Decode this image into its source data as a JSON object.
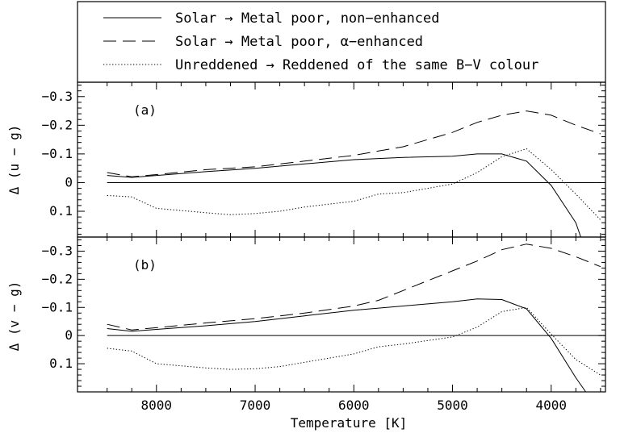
{
  "chart_data": {
    "type": "line",
    "xlabel": "Temperature [K]",
    "xlim": [
      8800,
      3450
    ],
    "x_reversed": true,
    "xticks": [
      8000,
      7000,
      6000,
      5000,
      4000
    ],
    "legend": {
      "placement": "top",
      "entries": [
        {
          "label": "Solar → Metal poor, non−enhanced",
          "style": "solid"
        },
        {
          "label": "Solar → Metal poor, α−enhanced",
          "style": "dashed"
        },
        {
          "label": "Unreddened → Reddened of the same B−V colour",
          "style": "dotted"
        }
      ]
    },
    "panels": [
      {
        "panel_label": "(a)",
        "ylabel": "Δ (u − g)",
        "ylim": [
          0.19,
          -0.35
        ],
        "y_reversed": true,
        "yticks": [
          -0.3,
          -0.2,
          -0.1,
          0,
          0.1
        ],
        "ytick_labels": [
          "−0.3",
          "−0.2",
          "−0.1",
          "0",
          "0.1"
        ],
        "zero_line": true,
        "series": [
          {
            "name": "Solar → Metal poor, non−enhanced",
            "style": "solid",
            "x": [
              8500,
              8250,
              8000,
              7500,
              7000,
              6500,
              6000,
              5500,
              5000,
              4750,
              4500,
              4250,
              4000,
              3750,
              3700
            ],
            "y": [
              -0.025,
              -0.018,
              -0.025,
              -0.038,
              -0.05,
              -0.065,
              -0.08,
              -0.088,
              -0.092,
              -0.1,
              -0.1,
              -0.075,
              0.01,
              0.14,
              0.19
            ]
          },
          {
            "name": "Solar → Metal poor, α−enhanced",
            "style": "dashed",
            "x": [
              8500,
              8250,
              8000,
              7500,
              7000,
              6500,
              6000,
              5750,
              5500,
              5000,
              4750,
              4500,
              4250,
              4000,
              3750,
              3500
            ],
            "y": [
              -0.035,
              -0.02,
              -0.028,
              -0.045,
              -0.055,
              -0.075,
              -0.095,
              -0.11,
              -0.125,
              -0.175,
              -0.21,
              -0.235,
              -0.25,
              -0.235,
              -0.2,
              -0.17
            ]
          },
          {
            "name": "Unreddened → Reddened of the same B−V colour",
            "style": "dotted",
            "x": [
              8500,
              8250,
              8000,
              7500,
              7250,
              7000,
              6750,
              6500,
              6000,
              5750,
              5500,
              5000,
              4750,
              4500,
              4250,
              4000,
              3750,
              3500
            ],
            "y": [
              0.045,
              0.05,
              0.09,
              0.105,
              0.112,
              0.108,
              0.1,
              0.085,
              0.065,
              0.04,
              0.035,
              0.005,
              -0.035,
              -0.09,
              -0.118,
              -0.045,
              0.04,
              0.13
            ]
          }
        ]
      },
      {
        "panel_label": "(b)",
        "ylabel": "Δ (v − g)",
        "ylim": [
          0.2,
          -0.35
        ],
        "y_reversed": true,
        "yticks": [
          -0.3,
          -0.2,
          -0.1,
          0,
          0.1
        ],
        "ytick_labels": [
          "−0.3",
          "−0.2",
          "−0.1",
          "0",
          "0.1"
        ],
        "zero_line": true,
        "series": [
          {
            "name": "Solar → Metal poor, non−enhanced",
            "style": "solid",
            "x": [
              8500,
              8250,
              8000,
              7500,
              7000,
              6500,
              6000,
              5500,
              5000,
              4750,
              4500,
              4250,
              4000,
              3750,
              3650
            ],
            "y": [
              -0.025,
              -0.015,
              -0.022,
              -0.035,
              -0.05,
              -0.07,
              -0.09,
              -0.105,
              -0.12,
              -0.13,
              -0.128,
              -0.095,
              0.01,
              0.15,
              0.2
            ]
          },
          {
            "name": "Solar → Metal poor, α−enhanced",
            "style": "dashed",
            "x": [
              8500,
              8250,
              8000,
              7500,
              7000,
              6500,
              6000,
              5750,
              5500,
              5000,
              4750,
              4500,
              4250,
              4000,
              3750,
              3500
            ],
            "y": [
              -0.04,
              -0.02,
              -0.028,
              -0.045,
              -0.06,
              -0.08,
              -0.105,
              -0.125,
              -0.16,
              -0.23,
              -0.265,
              -0.305,
              -0.325,
              -0.31,
              -0.28,
              -0.245
            ]
          },
          {
            "name": "Unreddened → Reddened of the same B−V colour",
            "style": "dotted",
            "x": [
              8500,
              8250,
              8000,
              7500,
              7250,
              7000,
              6750,
              6500,
              6000,
              5750,
              5500,
              5000,
              4750,
              4500,
              4250,
              4000,
              3750,
              3500
            ],
            "y": [
              0.045,
              0.055,
              0.1,
              0.115,
              0.12,
              0.118,
              0.11,
              0.095,
              0.065,
              0.04,
              0.03,
              0.005,
              -0.03,
              -0.085,
              -0.1,
              -0.005,
              0.085,
              0.14
            ]
          }
        ]
      }
    ]
  }
}
